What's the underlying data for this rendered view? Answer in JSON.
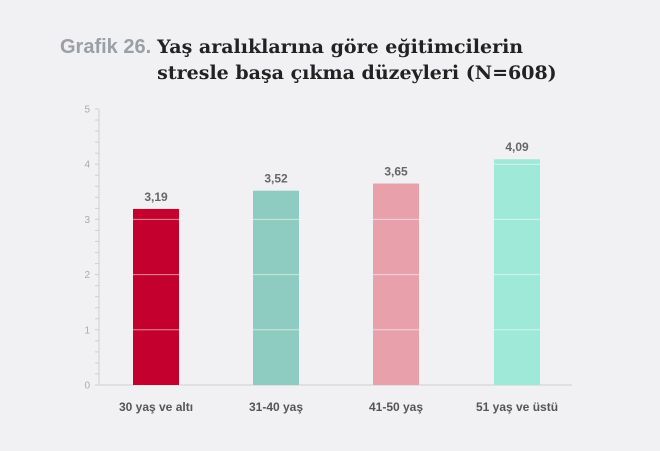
{
  "figure": {
    "label": "Grafik 26.",
    "title": "Yaş aralıklarına göre eğitimcilerin stresle başa çıkma düzeyleri (N=608)"
  },
  "chart_data": {
    "type": "bar",
    "categories": [
      "30 yaş ve altı",
      "31-40 yaş",
      "41-50 yaş",
      "51 yaş ve üstü"
    ],
    "values": [
      3.19,
      3.52,
      3.65,
      4.09
    ],
    "value_labels": [
      "3,19",
      "3,52",
      "3,65",
      "4,09"
    ],
    "bar_colors": [
      "#c4002f",
      "#8ecbc1",
      "#e8a0aa",
      "#9fe9d9"
    ],
    "ylim": [
      0,
      5
    ],
    "yticks": [
      "0",
      "1",
      "2",
      "3",
      "4",
      "5"
    ],
    "minor_ticks_per_unit": 5,
    "grid": false,
    "xlabel": "",
    "ylabel": ""
  }
}
